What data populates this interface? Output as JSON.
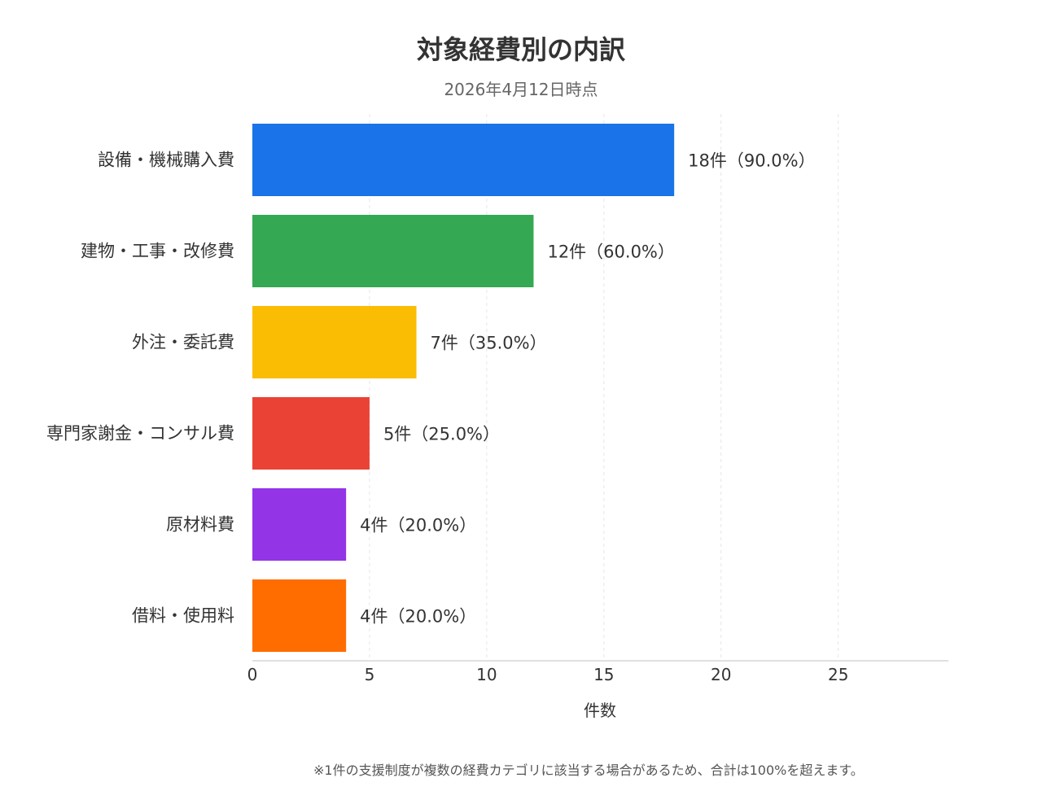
{
  "chart_data": {
    "type": "bar",
    "orientation": "horizontal",
    "title": "対象経費別の内訳",
    "subtitle": "2026年4月12日時点",
    "categories": [
      "設備・機械購入費",
      "建物・工事・改修費",
      "外注・委託費",
      "専門家謝金・コンサル費",
      "原材料費",
      "借料・使用料"
    ],
    "values": [
      18,
      12,
      7,
      5,
      4,
      4
    ],
    "data_labels": [
      "18件（90.0%）",
      "12件（60.0%）",
      "7件（35.0%）",
      "5件（25.0%）",
      "4件（20.0%）",
      "4件（20.0%）"
    ],
    "colors": [
      "#1a73e8",
      "#34a853",
      "#fbbc04",
      "#ea4335",
      "#9334e6",
      "#ff6d00"
    ],
    "xlabel": "件数",
    "ylabel": "",
    "xlim": [
      0,
      29.7
    ],
    "xticks": [
      "0",
      "5",
      "10",
      "15",
      "20",
      "25"
    ],
    "grid": "vertical dashed",
    "legend": "none"
  },
  "footnote": "※1件の支援制度が複数の経費カテゴリに該当する場合があるため、合計は100%を超えます。"
}
